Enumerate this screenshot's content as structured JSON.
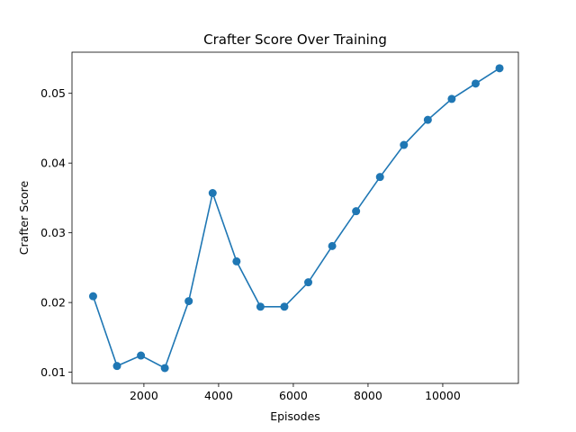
{
  "chart_data": {
    "type": "line",
    "title": "Crafter Score Over Training",
    "xlabel": "Episodes",
    "ylabel": "Crafter Score",
    "xlim": [
      75,
      12025
    ],
    "ylim": [
      0.0084,
      0.0559
    ],
    "xticks": [
      2000,
      4000,
      6000,
      8000,
      10000
    ],
    "xtick_labels": [
      "2000",
      "4000",
      "6000",
      "8000",
      "10000"
    ],
    "yticks": [
      0.01,
      0.02,
      0.03,
      0.04,
      0.05
    ],
    "ytick_labels": [
      "0.01",
      "0.02",
      "0.03",
      "0.04",
      "0.05"
    ],
    "grid": false,
    "series": [
      {
        "color": "#1f77b4",
        "marker": "circle",
        "x": [
          640,
          1280,
          1920,
          2560,
          3200,
          3840,
          4480,
          5120,
          5760,
          6400,
          7040,
          7680,
          8320,
          8960,
          9600,
          10240,
          10880,
          11520
        ],
        "y": [
          0.0209,
          0.0109,
          0.0124,
          0.0106,
          0.0202,
          0.0357,
          0.0259,
          0.0194,
          0.0194,
          0.0229,
          0.0281,
          0.0331,
          0.038,
          0.0426,
          0.0462,
          0.0492,
          0.0514,
          0.0536
        ]
      }
    ]
  }
}
